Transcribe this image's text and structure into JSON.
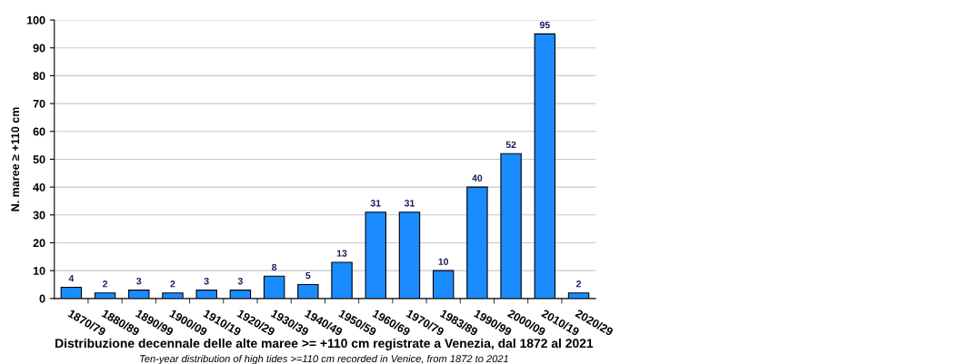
{
  "chart_data": {
    "type": "bar",
    "title": "Distribuzione decennale delle alte maree >= +110 cm registrate a Venezia, dal 1872 al 2021",
    "subtitle": "Ten-year distribution of high tides >=110 cm recorded in Venice, from 1872 to 2021",
    "ylabel": "N. maree ≥ +110 cm",
    "categories": [
      "1870/79",
      "1880/89",
      "1890/99",
      "1900/09",
      "1910/19",
      "1920/29",
      "1930/39",
      "1940/49",
      "1950/59",
      "1960/69",
      "1970/79",
      "1983/89",
      "1990/99",
      "2000/09",
      "2010/19",
      "2020/29"
    ],
    "values": [
      4,
      2,
      3,
      2,
      3,
      3,
      8,
      5,
      13,
      31,
      31,
      10,
      40,
      52,
      95,
      2
    ],
    "color": "#1a8cff",
    "ylim": [
      0,
      100
    ],
    "yticks": [
      0,
      10,
      20,
      30,
      40,
      50,
      60,
      70,
      80,
      90,
      100
    ],
    "grid": "y",
    "data_labels": true
  }
}
